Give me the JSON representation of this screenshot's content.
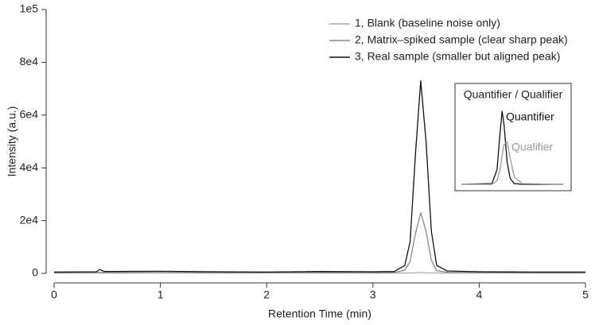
{
  "chart_data": [
    {
      "type": "line",
      "x_label": "Retention Time (min)",
      "y_label": "Intensity (a.u.)",
      "x": [
        0,
        0.4,
        0.43,
        0.47,
        1,
        1.5,
        2,
        2.5,
        3,
        3.2,
        3.3,
        3.35,
        3.4,
        3.45,
        3.5,
        3.55,
        3.6,
        3.7,
        4,
        4.5,
        5
      ],
      "series": [
        {
          "name": "1, Blank (baseline noise only)",
          "color": "#aaaaaa",
          "values": [
            100,
            120,
            110,
            100,
            150,
            100,
            130,
            110,
            100,
            120,
            120,
            150,
            200,
            300,
            200,
            150,
            120,
            100,
            110,
            100,
            100
          ]
        },
        {
          "name": "2, Matrix–spiked sample (clear sharp peak)",
          "color": "#888888",
          "values": [
            300,
            300,
            350,
            300,
            300,
            300,
            300,
            300,
            300,
            300,
            1200,
            4500,
            15000,
            23000,
            16000,
            5000,
            1000,
            400,
            300,
            300,
            300
          ]
        },
        {
          "name": "3, Real sample (smaller but aligned peak)",
          "color": "#111111",
          "values": [
            500,
            600,
            1500,
            700,
            800,
            600,
            500,
            700,
            600,
            700,
            3000,
            12000,
            45000,
            73000,
            50000,
            16000,
            3000,
            900,
            600,
            500,
            500
          ]
        }
      ],
      "xlim": [
        0,
        5
      ],
      "xticks": [
        0,
        1,
        2,
        3,
        4,
        5
      ],
      "ylim": [
        0,
        100000
      ],
      "yticks": [
        0,
        {
          "value": 20000,
          "label": "2e4"
        },
        {
          "value": 40000,
          "label": "4e4"
        },
        {
          "value": 60000,
          "label": "6e4"
        },
        {
          "value": 80000,
          "label": "8e4"
        },
        {
          "value": 100000,
          "label": "1e5"
        }
      ],
      "grid": false,
      "legend": "upper right"
    },
    {
      "type": "line",
      "title": "Quantifier / Qualifier",
      "x": [
        0,
        30,
        35,
        38,
        40,
        42,
        45,
        48,
        52,
        60,
        100
      ],
      "series": [
        {
          "name": "Quantifier",
          "color": "#111111",
          "values": [
            0,
            0.01,
            0.2,
            0.7,
            1.0,
            0.8,
            0.3,
            0.08,
            0.01,
            0,
            0
          ]
        },
        {
          "name": "Qualifier",
          "color": "#999999",
          "values": [
            0,
            0,
            0.05,
            0.2,
            0.4,
            0.55,
            0.58,
            0.35,
            0.1,
            0.01,
            0
          ]
        }
      ],
      "xlim": [
        0,
        100
      ],
      "ylim": [
        0,
        1
      ]
    }
  ]
}
